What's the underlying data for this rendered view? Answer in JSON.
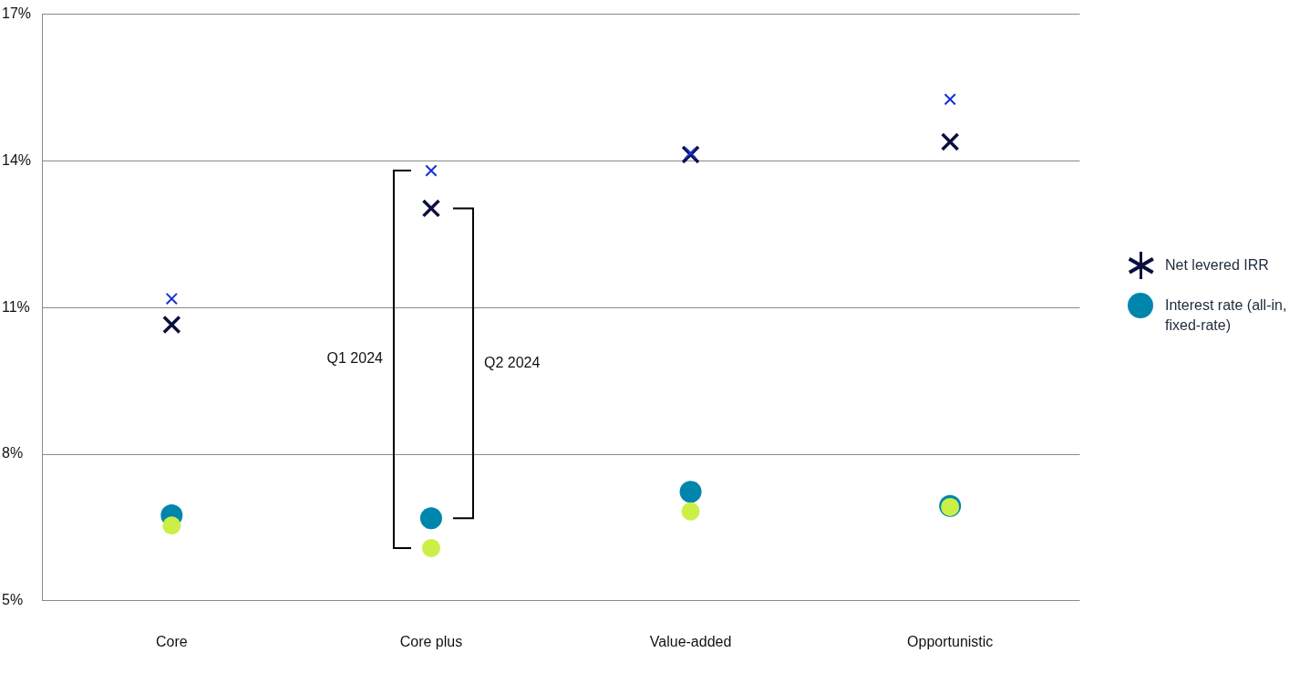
{
  "chart_data": {
    "type": "scatter",
    "categories": [
      "Core",
      "Core plus",
      "Value-added",
      "Opportunistic"
    ],
    "series": [
      {
        "name": "Net levered IRR",
        "color": "#0b0f3f",
        "marker": "cross",
        "values": [
          10.65,
          13.03,
          14.13,
          14.39
        ]
      },
      {
        "name": "Interest rate (all-in, fixed-rate)",
        "color": "#0086ad",
        "marker": "circle",
        "values": [
          6.75,
          6.69,
          7.23,
          6.94
        ]
      },
      {
        "color": "#1432d6",
        "marker": "cross",
        "values": [
          11.18,
          13.8,
          14.16,
          15.26
        ]
      },
      {
        "color": "#ccef47",
        "marker": "circle",
        "values": [
          6.54,
          6.08,
          6.83,
          6.92
        ]
      }
    ],
    "ylim": [
      5,
      17
    ],
    "yticks": [
      {
        "value": 5,
        "label": "5%"
      },
      {
        "value": 8,
        "label": "8%"
      },
      {
        "value": 11,
        "label": "11%"
      },
      {
        "value": 14,
        "label": "14%"
      },
      {
        "value": 17,
        "label": "17%"
      }
    ],
    "grid": "y",
    "legend": "right",
    "annotations": [
      "Q1 2024",
      "Q2 2024"
    ]
  }
}
